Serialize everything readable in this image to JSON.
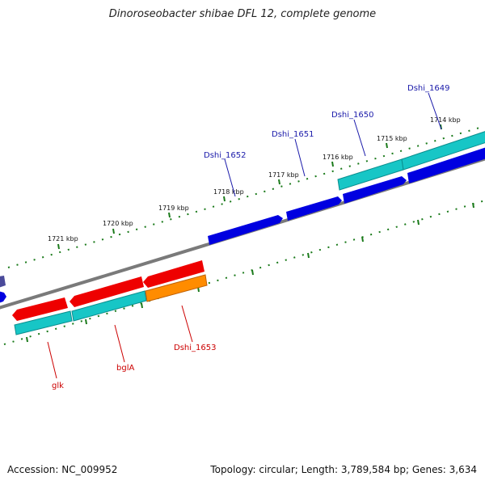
{
  "title": "Dinoroseobacter shibae DFL 12, complete genome",
  "accession": "Accession: NC_009952",
  "stats": "Topology: circular; Length: 3,789,584 bp; Genes: 3,634",
  "kbp_ticks": [
    "1714 kbp",
    "1715 kbp",
    "1716 kbp",
    "1717 kbp",
    "1718 kbp",
    "1719 kbp",
    "1720 kbp",
    "1721 kbp"
  ],
  "gene_labels_top": [
    "Dshi_1649",
    "Dshi_1650",
    "Dshi_1651",
    "Dshi_1652"
  ],
  "gene_labels_bottom": [
    "Dshi_1653",
    "bglA",
    "glk"
  ],
  "colors": {
    "backbone": "#808080",
    "cds_forward": "#0000e0",
    "cds_reverse": "#ee0000",
    "gene_cyan": "#17c6c6",
    "gene_orange": "#ff8c00",
    "tick_green": "#1a7a1a",
    "label_blue": "#1a1aaa",
    "label_red": "#cc0000"
  }
}
